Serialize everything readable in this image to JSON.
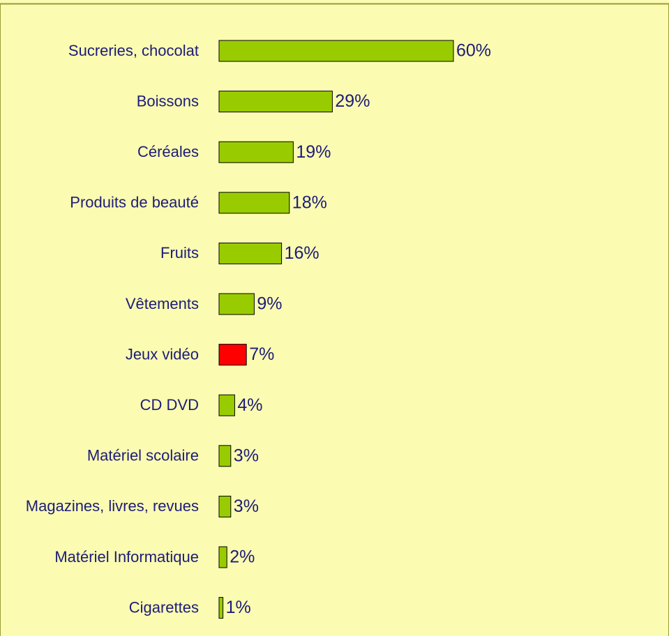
{
  "chart_data": {
    "type": "bar",
    "orientation": "horizontal",
    "categories": [
      "Sucreries, chocolat",
      "Boissons",
      "Céréales",
      "Produits de beauté",
      "Fruits",
      "Vêtements",
      "Jeux vidéo",
      "CD DVD",
      "Matériel scolaire",
      "Magazines, livres, revues",
      "Matériel Informatique",
      "Cigarettes"
    ],
    "values": [
      60,
      29,
      19,
      18,
      16,
      9,
      7,
      4,
      3,
      3,
      2,
      1
    ],
    "value_labels": [
      "60%",
      "29%",
      "19%",
      "18%",
      "16%",
      "9%",
      "7%",
      "4%",
      "3%",
      "3%",
      "2%",
      "1%"
    ],
    "colors": [
      "#99cc00",
      "#99cc00",
      "#99cc00",
      "#99cc00",
      "#99cc00",
      "#99cc00",
      "#ff0000",
      "#99cc00",
      "#99cc00",
      "#99cc00",
      "#99cc00",
      "#99cc00"
    ]
  }
}
